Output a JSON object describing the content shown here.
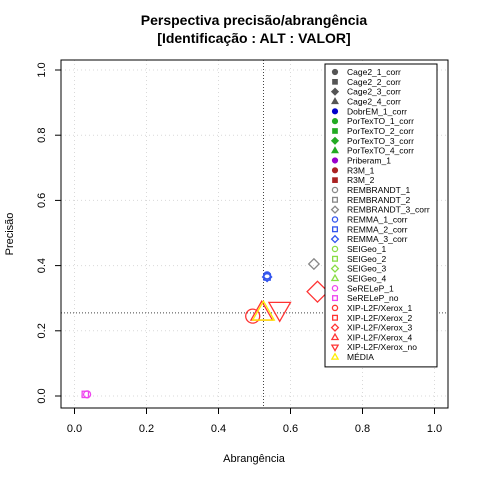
{
  "chart_data": {
    "type": "scatter",
    "title": "Perspectiva precisão/abrangência",
    "subtitle": "[Identificação : ALT : VALOR]",
    "xlabel": "Abrangência",
    "ylabel": "Precisão",
    "xlim": [
      0,
      1
    ],
    "ylim": [
      0,
      1
    ],
    "xticks": [
      "0.0",
      "0.2",
      "0.4",
      "0.6",
      "0.8",
      "1.0"
    ],
    "yticks": [
      "0.0",
      "0.2",
      "0.4",
      "0.6",
      "0.8",
      "1.0"
    ],
    "grid": true,
    "legend_position": "right",
    "reference_lines": {
      "x": 0.525,
      "y": 0.255
    },
    "series": [
      {
        "name": "Cage2_1_corr",
        "shape": "circle",
        "color": "#555555",
        "filled": true,
        "x": null,
        "y": null
      },
      {
        "name": "Cage2_2_corr",
        "shape": "square",
        "color": "#555555",
        "filled": true,
        "x": null,
        "y": null
      },
      {
        "name": "Cage2_3_corr",
        "shape": "diamond",
        "color": "#555555",
        "filled": true,
        "x": null,
        "y": null
      },
      {
        "name": "Cage2_4_corr",
        "shape": "triangle",
        "color": "#555555",
        "filled": true,
        "x": null,
        "y": null
      },
      {
        "name": "DobrEM_1_corr",
        "shape": "circle",
        "color": "#0000cc",
        "filled": true,
        "x": null,
        "y": null
      },
      {
        "name": "PorTexTO_1_corr",
        "shape": "circle",
        "color": "#22aa22",
        "filled": true,
        "x": null,
        "y": null
      },
      {
        "name": "PorTexTO_2_corr",
        "shape": "square",
        "color": "#22aa22",
        "filled": true,
        "x": null,
        "y": null
      },
      {
        "name": "PorTexTO_3_corr",
        "shape": "diamond",
        "color": "#22aa22",
        "filled": true,
        "x": null,
        "y": null
      },
      {
        "name": "PorTexTO_4_corr",
        "shape": "triangle",
        "color": "#22aa22",
        "filled": true,
        "x": null,
        "y": null
      },
      {
        "name": "Priberam_1",
        "shape": "circle",
        "color": "#9900cc",
        "filled": true,
        "x": null,
        "y": null
      },
      {
        "name": "R3M_1",
        "shape": "circle",
        "color": "#aa2222",
        "filled": true,
        "x": null,
        "y": null
      },
      {
        "name": "R3M_2",
        "shape": "square",
        "color": "#aa2222",
        "filled": true,
        "x": null,
        "y": null
      },
      {
        "name": "REMBRANDT_1",
        "shape": "circle",
        "color": "#888888",
        "filled": false,
        "x": null,
        "y": null
      },
      {
        "name": "REMBRANDT_2",
        "shape": "square",
        "color": "#888888",
        "filled": false,
        "x": null,
        "y": null
      },
      {
        "name": "REMBRANDT_3_corr",
        "shape": "diamond",
        "color": "#888888",
        "filled": false,
        "x": 0.665,
        "y": 0.405
      },
      {
        "name": "REMMA_1_corr",
        "shape": "circle",
        "color": "#3355ee",
        "filled": false,
        "x": 0.535,
        "y": 0.37
      },
      {
        "name": "REMMA_2_corr",
        "shape": "square",
        "color": "#3355ee",
        "filled": false,
        "x": 0.535,
        "y": 0.365
      },
      {
        "name": "REMMA_3_corr",
        "shape": "diamond",
        "color": "#3355ee",
        "filled": false,
        "x": 0.535,
        "y": 0.365
      },
      {
        "name": "SEIGeo_1",
        "shape": "circle",
        "color": "#88dd44",
        "filled": false,
        "x": null,
        "y": null
      },
      {
        "name": "SEIGeo_2",
        "shape": "square",
        "color": "#88dd44",
        "filled": false,
        "x": null,
        "y": null
      },
      {
        "name": "SEIGeo_3",
        "shape": "diamond",
        "color": "#88dd44",
        "filled": false,
        "x": null,
        "y": null
      },
      {
        "name": "SEIGeo_4",
        "shape": "triangle",
        "color": "#88dd44",
        "filled": false,
        "x": null,
        "y": null
      },
      {
        "name": "SeRELeP_1",
        "shape": "circle",
        "color": "#ee44ee",
        "filled": false,
        "x": 0.035,
        "y": 0.005
      },
      {
        "name": "SeRELeP_no",
        "shape": "square",
        "color": "#ee44ee",
        "filled": false,
        "x": 0.03,
        "y": 0.005
      },
      {
        "name": "XIP-L2F/Xerox_1",
        "shape": "circle",
        "color": "#ff3333",
        "filled": false,
        "x": 0.495,
        "y": 0.245
      },
      {
        "name": "XIP-L2F/Xerox_2",
        "shape": "square",
        "color": "#ff3333",
        "filled": false,
        "x": null,
        "y": null
      },
      {
        "name": "XIP-L2F/Xerox_3",
        "shape": "diamond",
        "color": "#ff3333",
        "filled": false,
        "x": 0.675,
        "y": 0.32
      },
      {
        "name": "XIP-L2F/Xerox_4",
        "shape": "triangle",
        "color": "#ff3333",
        "filled": false,
        "x": 0.52,
        "y": 0.255
      },
      {
        "name": "XIP-L2F/Xerox_no",
        "shape": "triangle-down",
        "color": "#ff3333",
        "filled": false,
        "x": 0.57,
        "y": 0.265
      },
      {
        "name": "MÉDIA",
        "shape": "triangle",
        "color": "#ffee00",
        "filled": false,
        "x": 0.525,
        "y": 0.255
      }
    ]
  }
}
